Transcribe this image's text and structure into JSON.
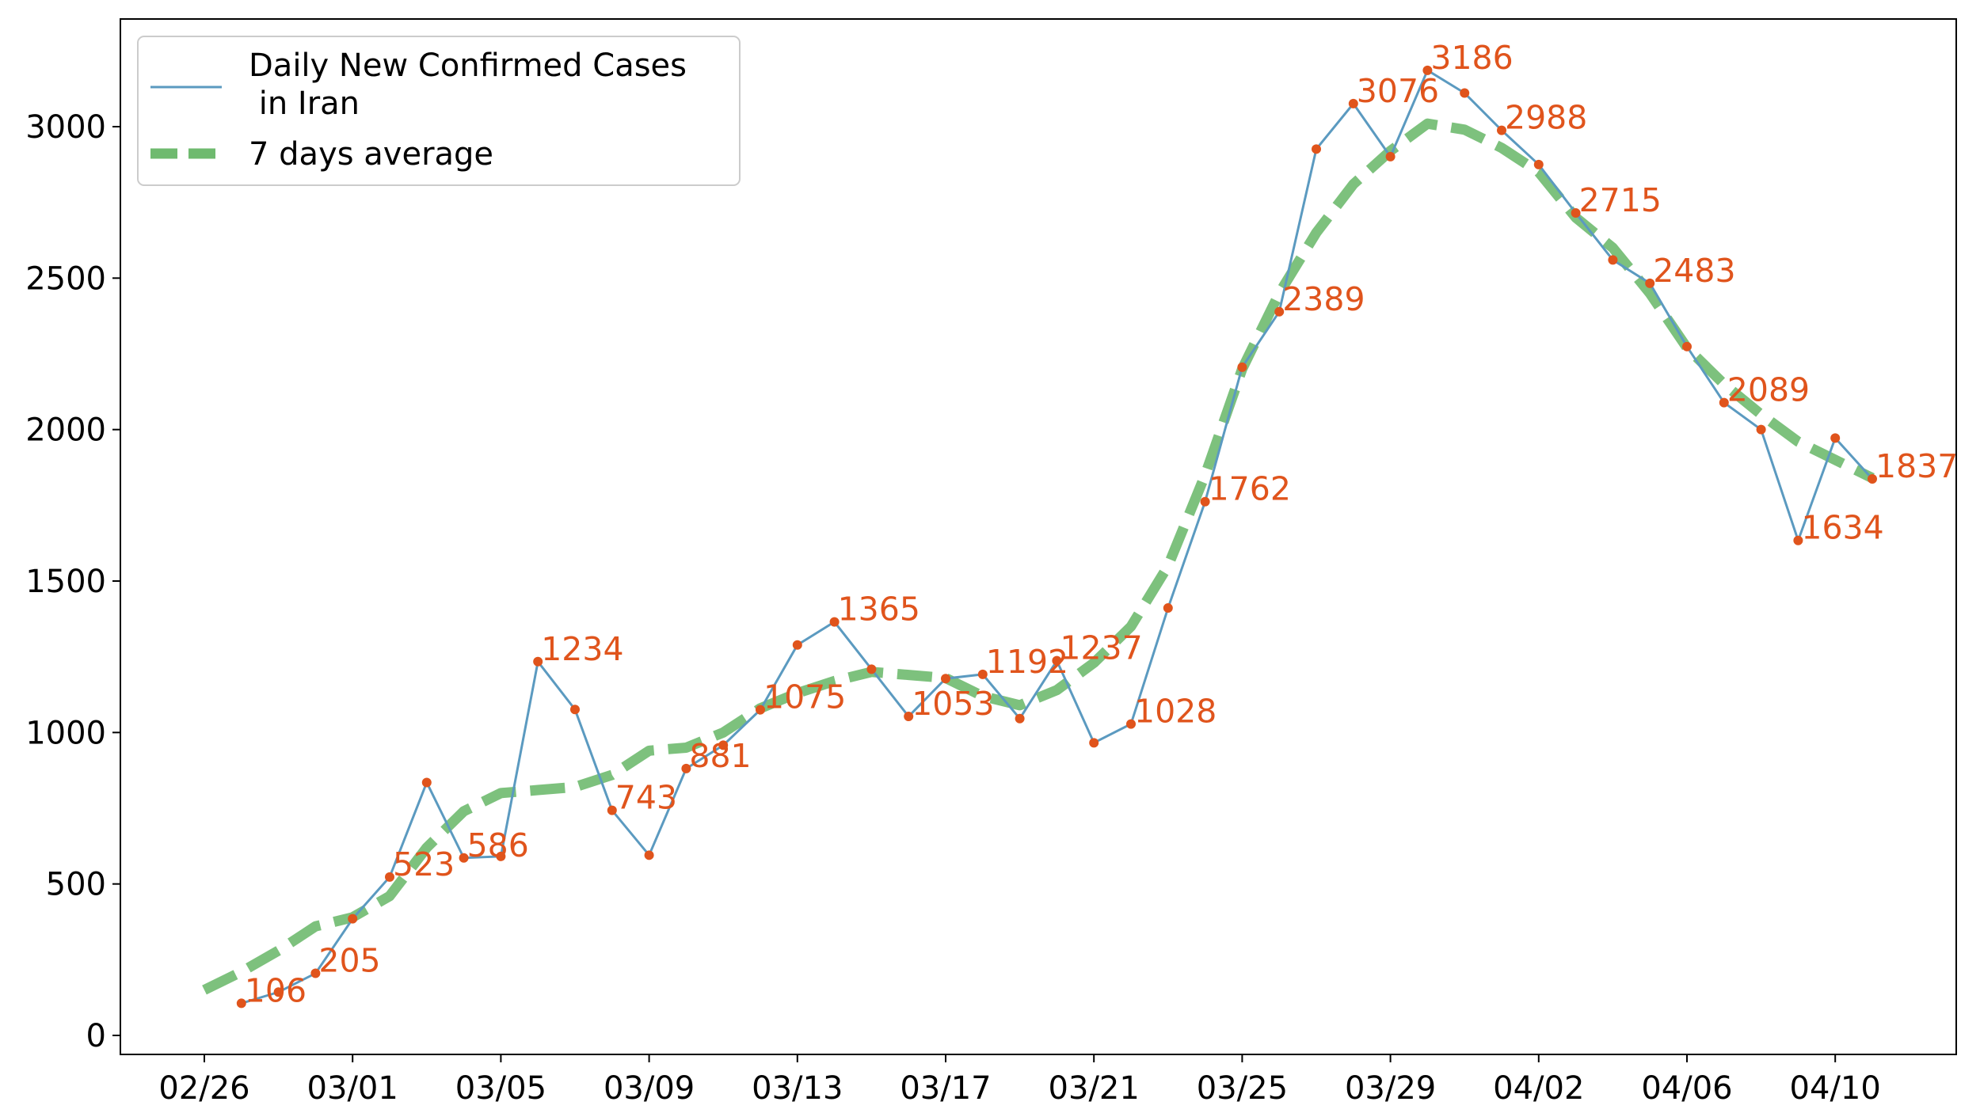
{
  "chart_data": {
    "type": "line",
    "title": "",
    "xlabel": "",
    "ylabel": "",
    "ylim": [
      -60,
      3300
    ],
    "yticks": [
      0,
      500,
      1000,
      1500,
      2000,
      2500,
      3000
    ],
    "xticks": [
      "02/26",
      "03/01",
      "03/05",
      "03/09",
      "03/13",
      "03/17",
      "03/21",
      "03/25",
      "03/29",
      "04/02",
      "04/06",
      "04/10"
    ],
    "grid": false,
    "legend_position": "top-left",
    "x": [
      "02/27",
      "02/28",
      "02/29",
      "03/01",
      "03/02",
      "03/03",
      "03/04",
      "03/05",
      "03/06",
      "03/07",
      "03/08",
      "03/09",
      "03/10",
      "03/11",
      "03/12",
      "03/13",
      "03/14",
      "03/15",
      "03/16",
      "03/17",
      "03/18",
      "03/19",
      "03/20",
      "03/21",
      "03/22",
      "03/23",
      "03/24",
      "03/25",
      "03/26",
      "03/27",
      "03/28",
      "03/29",
      "03/30",
      "03/31",
      "04/01",
      "04/02",
      "04/03",
      "04/04",
      "04/05",
      "04/06",
      "04/07",
      "04/08",
      "04/09",
      "04/10",
      "04/11"
    ],
    "series": [
      {
        "name": "Daily New Confirmed Cases\n in Iran",
        "style": "line",
        "values": [
          106,
          143,
          205,
          385,
          523,
          835,
          586,
          591,
          1234,
          1076,
          743,
          595,
          881,
          958,
          1075,
          1289,
          1365,
          1209,
          1053,
          1178,
          1192,
          1046,
          1237,
          966,
          1028,
          1411,
          1762,
          2206,
          2389,
          2926,
          3076,
          2901,
          3186,
          3111,
          2988,
          2875,
          2715,
          2560,
          2483,
          2274,
          2089,
          2000,
          1634,
          1972,
          1837
        ],
        "color": "#5b9ac0",
        "marker_color": "#e0541c"
      },
      {
        "name": "7 days average",
        "style": "dashed",
        "color": "#6fba6f",
        "x": [
          "02/26",
          "02/27",
          "02/28",
          "02/29",
          "03/01",
          "03/02",
          "03/03",
          "03/04",
          "03/05",
          "03/06",
          "03/07",
          "03/08",
          "03/09",
          "03/10",
          "03/11",
          "03/12",
          "03/13",
          "03/14",
          "03/15",
          "03/16",
          "03/17",
          "03/18",
          "03/19",
          "03/20",
          "03/21",
          "03/22",
          "03/23",
          "03/24",
          "03/25",
          "03/26",
          "03/27",
          "03/28",
          "03/29",
          "03/30",
          "03/31",
          "04/01",
          "04/02",
          "04/03",
          "04/04",
          "04/05",
          "04/06",
          "04/07",
          "04/08",
          "04/09",
          "04/10",
          "04/11"
        ],
        "values": [
          150,
          210,
          280,
          360,
          390,
          460,
          620,
          740,
          800,
          810,
          820,
          860,
          940,
          950,
          1000,
          1080,
          1130,
          1170,
          1200,
          1190,
          1180,
          1120,
          1090,
          1140,
          1230,
          1350,
          1550,
          1850,
          2200,
          2450,
          2650,
          2810,
          2920,
          3010,
          2990,
          2930,
          2850,
          2700,
          2600,
          2450,
          2270,
          2150,
          2050,
          1960,
          1900,
          1840
        ]
      }
    ],
    "annotations": [
      {
        "x": "02/27",
        "y": 106,
        "text": "106"
      },
      {
        "x": "02/29",
        "y": 205,
        "text": "205"
      },
      {
        "x": "03/02",
        "y": 523,
        "text": "523"
      },
      {
        "x": "03/04",
        "y": 586,
        "text": "586"
      },
      {
        "x": "03/06",
        "y": 1234,
        "text": "1234"
      },
      {
        "x": "03/08",
        "y": 743,
        "text": "743"
      },
      {
        "x": "03/10",
        "y": 881,
        "text": "881"
      },
      {
        "x": "03/12",
        "y": 1075,
        "text": "1075"
      },
      {
        "x": "03/14",
        "y": 1365,
        "text": "1365"
      },
      {
        "x": "03/16",
        "y": 1053,
        "text": "1053"
      },
      {
        "x": "03/18",
        "y": 1192,
        "text": "1192"
      },
      {
        "x": "03/20",
        "y": 1237,
        "text": "1237"
      },
      {
        "x": "03/22",
        "y": 1028,
        "text": "1028"
      },
      {
        "x": "03/24",
        "y": 1762,
        "text": "1762"
      },
      {
        "x": "03/26",
        "y": 2389,
        "text": "2389"
      },
      {
        "x": "03/28",
        "y": 3076,
        "text": "3076"
      },
      {
        "x": "03/30",
        "y": 3186,
        "text": "3186"
      },
      {
        "x": "04/01",
        "y": 2988,
        "text": "2988"
      },
      {
        "x": "04/03",
        "y": 2715,
        "text": "2715"
      },
      {
        "x": "04/05",
        "y": 2483,
        "text": "2483"
      },
      {
        "x": "04/07",
        "y": 2089,
        "text": "2089"
      },
      {
        "x": "04/09",
        "y": 1634,
        "text": "1634"
      },
      {
        "x": "04/11",
        "y": 1837,
        "text": "1837"
      }
    ]
  }
}
